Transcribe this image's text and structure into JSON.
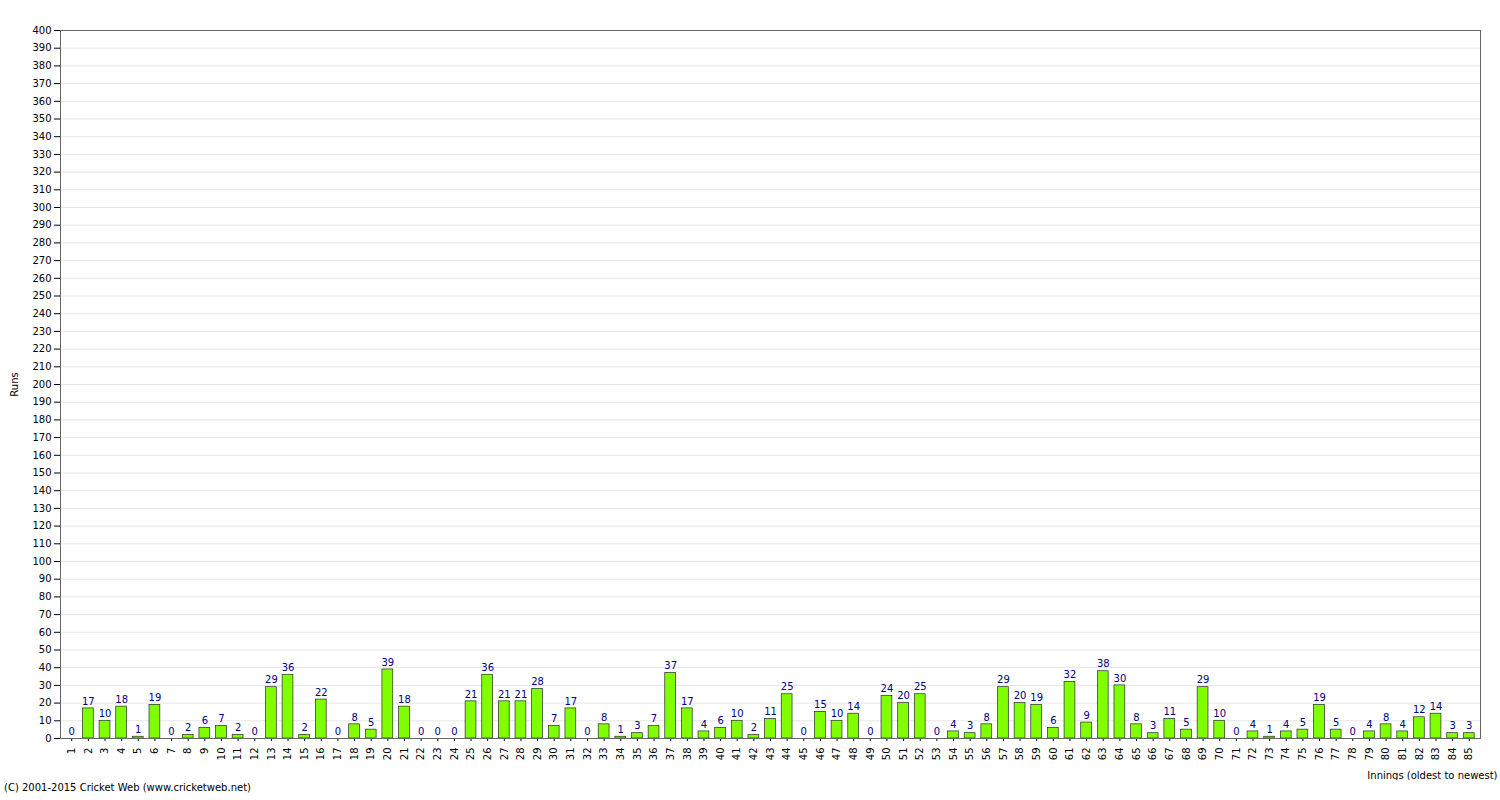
{
  "chart_data": {
    "type": "bar",
    "y_label": "Runs",
    "x_label": "Innings (oldest to newest)",
    "caption": "(C) 2001-2015 Cricket Web (www.cricketweb.net)",
    "categories": [
      "1",
      "2",
      "3",
      "4",
      "5",
      "6",
      "7",
      "8",
      "9",
      "10",
      "11",
      "12",
      "13",
      "14",
      "15",
      "16",
      "17",
      "18",
      "19",
      "20",
      "21",
      "22",
      "23",
      "24",
      "25",
      "26",
      "27",
      "28",
      "29",
      "30",
      "31",
      "32",
      "33",
      "34",
      "35",
      "36",
      "37",
      "38",
      "39",
      "40",
      "41",
      "42",
      "43",
      "44",
      "45",
      "46",
      "47",
      "48",
      "49",
      "50",
      "51",
      "52",
      "53",
      "54",
      "55",
      "56",
      "57",
      "58",
      "59",
      "60",
      "61",
      "62",
      "63",
      "64",
      "65",
      "66",
      "67",
      "68",
      "69",
      "70",
      "71",
      "72",
      "73",
      "74",
      "75",
      "76",
      "77",
      "78",
      "79",
      "80",
      "81",
      "82",
      "83",
      "84",
      "85"
    ],
    "values": [
      0,
      17,
      10,
      18,
      1,
      19,
      0,
      2,
      6,
      7,
      2,
      0,
      29,
      36,
      2,
      22,
      0,
      8,
      5,
      39,
      18,
      0,
      0,
      0,
      21,
      36,
      21,
      21,
      28,
      7,
      17,
      0,
      8,
      1,
      3,
      7,
      37,
      17,
      4,
      6,
      10,
      2,
      11,
      25,
      0,
      15,
      10,
      14,
      0,
      24,
      20,
      25,
      0,
      4,
      3,
      8,
      29,
      20,
      19,
      6,
      32,
      9,
      38,
      30,
      8,
      3,
      11,
      5,
      29,
      10,
      0,
      4,
      1,
      4,
      5,
      19,
      5,
      0,
      4,
      8,
      4,
      12,
      14,
      3,
      3
    ],
    "color": "#80ff00",
    "ylim": [
      0,
      400
    ],
    "yticks": [
      0,
      10,
      20,
      30,
      40,
      50,
      60,
      70,
      80,
      90,
      100,
      110,
      120,
      130,
      140,
      150,
      160,
      170,
      180,
      190,
      200,
      210,
      220,
      230,
      240,
      250,
      260,
      270,
      280,
      290,
      300,
      310,
      320,
      330,
      340,
      350,
      360,
      370,
      380,
      390,
      400
    ],
    "grid": true,
    "data_labels": true
  }
}
